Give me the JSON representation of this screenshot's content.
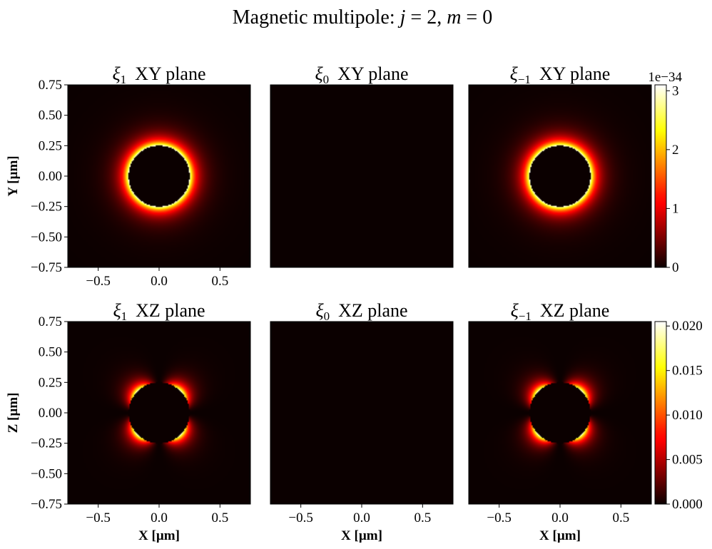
{
  "figure": {
    "title_prefix": "Magnetic multipole: ",
    "title_j": "j",
    "title_j_value": "2",
    "title_m": "m",
    "title_m_value": "0"
  },
  "chart_data": [
    {
      "type": "heatmap",
      "row": "xy",
      "component": "xi_1",
      "component_symbol": "ξ",
      "component_index": "1",
      "title": "XY plane",
      "xlabel": "",
      "ylabel": "Y [µm]",
      "xlim": [
        -0.75,
        0.75
      ],
      "ylim": [
        -0.75,
        0.75
      ],
      "x_ticks": [
        "−0.5",
        "0.0",
        "0.5"
      ],
      "y_ticks": [
        "−0.75",
        "−0.50",
        "−0.25",
        "0.00",
        "0.25",
        "0.50",
        "0.75"
      ],
      "colormap": "hot",
      "vmin": 0,
      "vmax": 3.1e-34,
      "pattern": "ring",
      "inner_radius": 0.25,
      "peak_value": 3.1e-34
    },
    {
      "type": "heatmap",
      "row": "xy",
      "component": "xi_0",
      "component_symbol": "ξ",
      "component_index": "0",
      "title": "XY plane",
      "xlim": [
        -0.75,
        0.75
      ],
      "ylim": [
        -0.75,
        0.75
      ],
      "colormap": "hot",
      "vmin": 0,
      "vmax": 3.1e-34,
      "pattern": "zero",
      "peak_value": 0
    },
    {
      "type": "heatmap",
      "row": "xy",
      "component": "xi_-1",
      "component_symbol": "ξ",
      "component_index": "−1",
      "title": "XY plane",
      "xlim": [
        -0.75,
        0.75
      ],
      "ylim": [
        -0.75,
        0.75
      ],
      "colormap": "hot",
      "vmin": 0,
      "vmax": 3.1e-34,
      "pattern": "ring",
      "inner_radius": 0.25,
      "peak_value": 3.1e-34,
      "colorbar": {
        "ticks": [
          {
            "value": 0,
            "label": "0"
          },
          {
            "value": 1,
            "label": "1"
          },
          {
            "value": 2,
            "label": "2"
          },
          {
            "value": 3,
            "label": "3"
          }
        ],
        "max": 3.1,
        "offset_label": "1e−34"
      }
    },
    {
      "type": "heatmap",
      "row": "xz",
      "component": "xi_1",
      "component_symbol": "ξ",
      "component_index": "1",
      "title": "XZ plane",
      "xlabel": "X [µm]",
      "ylabel": "Z [µm]",
      "xlim": [
        -0.75,
        0.75
      ],
      "ylim": [
        -0.75,
        0.75
      ],
      "x_ticks": [
        "−0.5",
        "0.0",
        "0.5"
      ],
      "y_ticks": [
        "−0.75",
        "−0.50",
        "−0.25",
        "0.00",
        "0.25",
        "0.50",
        "0.75"
      ],
      "colormap": "hot",
      "vmin": 0,
      "vmax": 0.0205,
      "pattern": "quadrupole",
      "inner_radius": 0.25,
      "peak_value": 0.0205
    },
    {
      "type": "heatmap",
      "row": "xz",
      "component": "xi_0",
      "component_symbol": "ξ",
      "component_index": "0",
      "title": "XZ plane",
      "xlabel": "X [µm]",
      "xlim": [
        -0.75,
        0.75
      ],
      "ylim": [
        -0.75,
        0.75
      ],
      "x_ticks": [
        "−0.5",
        "0.0",
        "0.5"
      ],
      "colormap": "hot",
      "vmin": 0,
      "vmax": 0.0205,
      "pattern": "zero",
      "peak_value": 0
    },
    {
      "type": "heatmap",
      "row": "xz",
      "component": "xi_-1",
      "component_symbol": "ξ",
      "component_index": "−1",
      "title": "XZ plane",
      "xlabel": "X [µm]",
      "xlim": [
        -0.75,
        0.75
      ],
      "ylim": [
        -0.75,
        0.75
      ],
      "x_ticks": [
        "−0.5",
        "0.0",
        "0.5"
      ],
      "colormap": "hot",
      "vmin": 0,
      "vmax": 0.0205,
      "pattern": "quadrupole",
      "inner_radius": 0.25,
      "peak_value": 0.0205,
      "colorbar": {
        "ticks": [
          {
            "value": 0.0,
            "label": "0.000"
          },
          {
            "value": 0.005,
            "label": "0.005"
          },
          {
            "value": 0.01,
            "label": "0.010"
          },
          {
            "value": 0.015,
            "label": "0.015"
          },
          {
            "value": 0.02,
            "label": "0.020"
          }
        ],
        "max": 0.0205,
        "offset_label": ""
      }
    }
  ]
}
